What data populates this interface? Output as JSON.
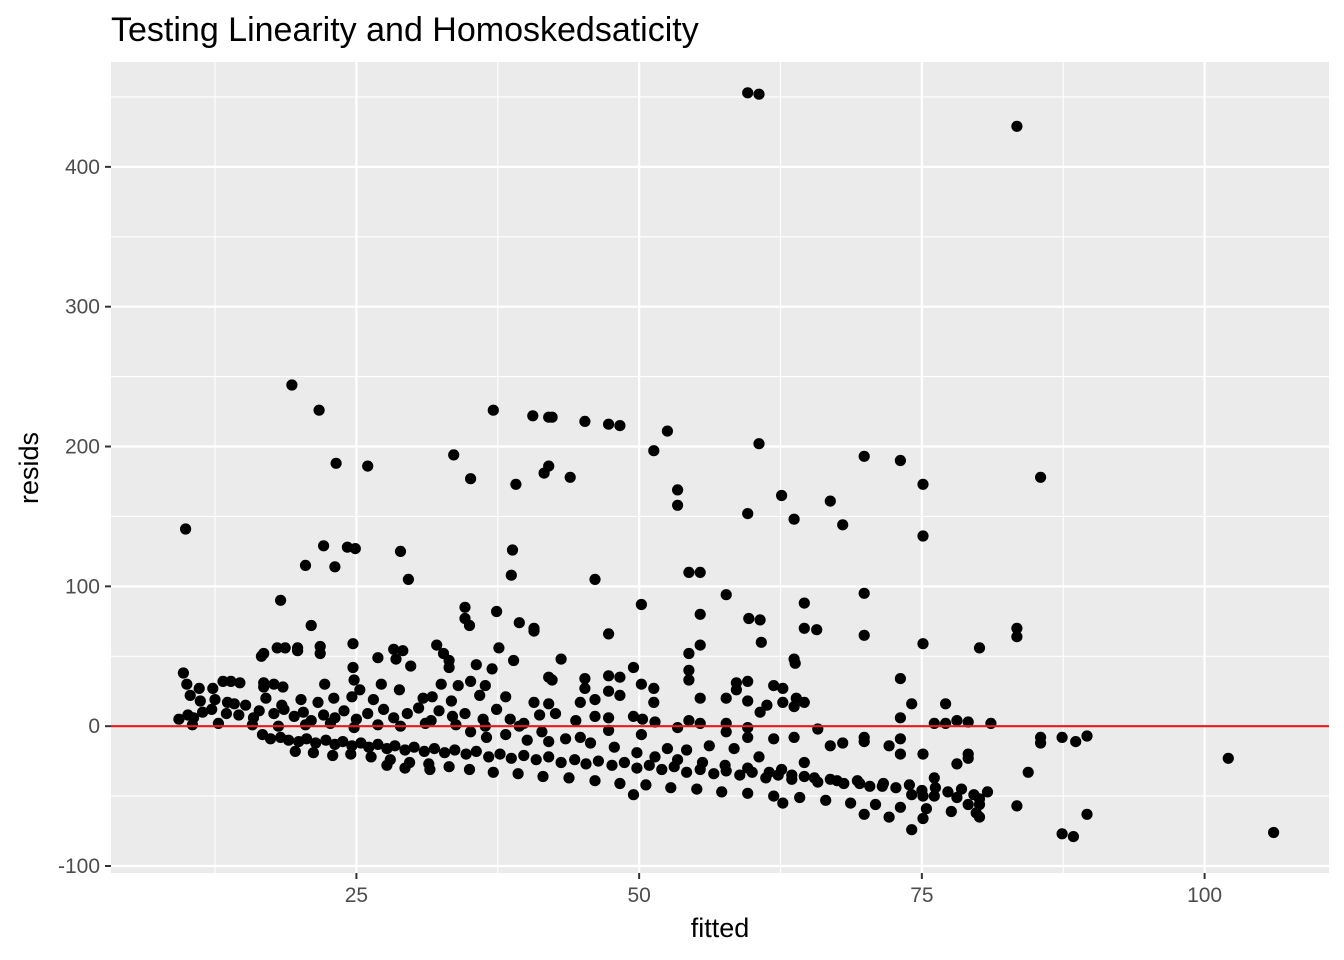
{
  "chart_data": {
    "type": "scatter",
    "title": "Testing Linearity and Homoskedsaticity",
    "xlabel": "fitted",
    "ylabel": "resids",
    "xlim": [
      3.3,
      111.0
    ],
    "ylim": [
      -105,
      475
    ],
    "x_ticks": [
      25,
      50,
      75,
      100
    ],
    "x_tick_labels": [
      "25",
      "50",
      "75",
      "100"
    ],
    "x_minor_ticks": [
      12.5,
      37.5,
      62.5,
      87.5
    ],
    "y_ticks": [
      -100,
      0,
      100,
      200,
      300,
      400
    ],
    "y_tick_labels": [
      "-100",
      "0",
      "100",
      "200",
      "300",
      "400"
    ],
    "y_minor_ticks": [
      -50,
      50,
      150,
      250,
      350,
      450
    ],
    "grid": true,
    "reference_line": {
      "y": 0,
      "color": "#e41a1c"
    },
    "point_color": "#000000",
    "panel_color": "#ebebeb",
    "grid_color": "#ffffff",
    "points": [
      [
        59.6,
        453
      ],
      [
        60.6,
        452
      ],
      [
        83.4,
        429
      ],
      [
        19.3,
        244
      ],
      [
        21.7,
        226
      ],
      [
        37.1,
        226
      ],
      [
        40.6,
        222
      ],
      [
        42.0,
        221
      ],
      [
        42.3,
        221
      ],
      [
        45.2,
        218
      ],
      [
        47.3,
        216
      ],
      [
        48.3,
        215
      ],
      [
        52.5,
        211
      ],
      [
        60.6,
        202
      ],
      [
        51.3,
        197
      ],
      [
        33.6,
        194
      ],
      [
        69.9,
        193
      ],
      [
        73.1,
        190
      ],
      [
        23.2,
        188
      ],
      [
        26.0,
        186
      ],
      [
        42.0,
        186
      ],
      [
        41.6,
        181
      ],
      [
        43.9,
        178
      ],
      [
        85.5,
        178
      ],
      [
        35.1,
        177
      ],
      [
        39.1,
        173
      ],
      [
        75.1,
        173
      ],
      [
        53.4,
        169
      ],
      [
        62.6,
        165
      ],
      [
        66.9,
        161
      ],
      [
        53.4,
        158
      ],
      [
        59.6,
        152
      ],
      [
        63.7,
        148
      ],
      [
        68.0,
        144
      ],
      [
        9.9,
        141
      ],
      [
        75.1,
        136
      ],
      [
        22.1,
        129
      ],
      [
        24.2,
        128
      ],
      [
        24.9,
        127
      ],
      [
        28.9,
        125
      ],
      [
        38.8,
        126
      ],
      [
        20.5,
        115
      ],
      [
        23.1,
        114
      ],
      [
        54.4,
        110
      ],
      [
        55.4,
        110
      ],
      [
        29.6,
        105
      ],
      [
        38.7,
        108
      ],
      [
        46.1,
        105
      ],
      [
        57.7,
        94
      ],
      [
        18.3,
        90
      ],
      [
        69.9,
        95
      ],
      [
        64.6,
        88
      ],
      [
        34.6,
        85
      ],
      [
        50.2,
        87
      ],
      [
        37.4,
        82
      ],
      [
        55.4,
        80
      ],
      [
        59.7,
        77
      ],
      [
        60.7,
        76
      ],
      [
        34.6,
        77
      ],
      [
        35.0,
        72
      ],
      [
        39.4,
        74
      ],
      [
        40.7,
        70
      ],
      [
        64.6,
        70
      ],
      [
        65.7,
        69
      ],
      [
        83.4,
        70
      ],
      [
        40.7,
        68
      ],
      [
        21.0,
        72
      ],
      [
        47.3,
        66
      ],
      [
        69.9,
        65
      ],
      [
        83.4,
        64
      ],
      [
        60.8,
        60
      ],
      [
        75.1,
        59
      ],
      [
        80.1,
        56
      ],
      [
        24.7,
        59
      ],
      [
        32.1,
        58
      ],
      [
        18.0,
        56
      ],
      [
        18.7,
        56
      ],
      [
        19.8,
        56
      ],
      [
        21.8,
        57
      ],
      [
        28.3,
        55
      ],
      [
        29.1,
        54
      ],
      [
        37.6,
        56
      ],
      [
        55.4,
        58
      ],
      [
        16.8,
        52
      ],
      [
        16.6,
        50
      ],
      [
        19.8,
        54
      ],
      [
        21.8,
        52
      ],
      [
        26.9,
        49
      ],
      [
        28.5,
        48
      ],
      [
        32.7,
        52
      ],
      [
        33.2,
        47
      ],
      [
        38.9,
        47
      ],
      [
        43.1,
        48
      ],
      [
        54.4,
        52
      ],
      [
        63.7,
        48
      ],
      [
        63.8,
        45
      ],
      [
        24.7,
        42
      ],
      [
        29.8,
        43
      ],
      [
        33.2,
        42
      ],
      [
        35.6,
        44
      ],
      [
        37.0,
        41
      ],
      [
        49.5,
        42
      ],
      [
        54.4,
        40
      ],
      [
        47.3,
        36
      ],
      [
        48.3,
        35
      ],
      [
        73.1,
        34
      ],
      [
        9.7,
        38
      ],
      [
        16.8,
        31
      ],
      [
        17.7,
        30
      ],
      [
        18.5,
        28
      ],
      [
        13.2,
        32
      ],
      [
        13.9,
        32
      ],
      [
        14.7,
        31
      ],
      [
        10.0,
        30
      ],
      [
        11.1,
        27
      ],
      [
        12.3,
        27
      ],
      [
        16.8,
        28
      ],
      [
        22.2,
        30
      ],
      [
        24.8,
        33
      ],
      [
        27.2,
        30
      ],
      [
        32.5,
        30
      ],
      [
        35.1,
        32
      ],
      [
        34.0,
        29
      ],
      [
        36.4,
        29
      ],
      [
        42.0,
        35
      ],
      [
        42.3,
        33
      ],
      [
        45.2,
        34
      ],
      [
        50.2,
        30
      ],
      [
        51.3,
        27
      ],
      [
        54.4,
        33
      ],
      [
        58.6,
        31
      ],
      [
        59.6,
        32
      ],
      [
        61.9,
        29
      ],
      [
        62.7,
        27
      ],
      [
        45.2,
        27
      ],
      [
        47.3,
        25
      ],
      [
        58.6,
        26
      ],
      [
        63.9,
        20
      ],
      [
        62.7,
        17
      ],
      [
        63.7,
        14
      ],
      [
        73.1,
        6
      ],
      [
        74.1,
        16
      ],
      [
        77.1,
        16
      ],
      [
        10.3,
        22
      ],
      [
        11.2,
        18
      ],
      [
        12.5,
        19
      ],
      [
        13.6,
        17
      ],
      [
        14.2,
        16
      ],
      [
        15.2,
        15
      ],
      [
        17.0,
        20
      ],
      [
        18.4,
        15
      ],
      [
        20.1,
        19
      ],
      [
        21.6,
        17
      ],
      [
        23.0,
        20
      ],
      [
        24.6,
        21
      ],
      [
        25.3,
        26
      ],
      [
        26.5,
        19
      ],
      [
        28.8,
        26
      ],
      [
        30.9,
        20
      ],
      [
        31.7,
        21
      ],
      [
        33.4,
        18
      ],
      [
        35.9,
        22
      ],
      [
        38.2,
        21
      ],
      [
        40.7,
        17
      ],
      [
        42.0,
        16
      ],
      [
        44.8,
        17
      ],
      [
        46.1,
        19
      ],
      [
        48.3,
        22
      ],
      [
        51.3,
        17
      ],
      [
        55.4,
        20
      ],
      [
        57.7,
        20
      ],
      [
        59.6,
        18
      ],
      [
        61.3,
        15
      ],
      [
        64.6,
        17
      ],
      [
        9.3,
        5
      ],
      [
        10.1,
        8
      ],
      [
        10.6,
        6
      ],
      [
        11.4,
        10
      ],
      [
        12.2,
        12
      ],
      [
        13.5,
        9
      ],
      [
        14.6,
        8
      ],
      [
        15.9,
        6
      ],
      [
        16.4,
        11
      ],
      [
        17.7,
        9
      ],
      [
        18.6,
        12
      ],
      [
        19.5,
        7
      ],
      [
        20.3,
        10
      ],
      [
        21.0,
        4
      ],
      [
        22.1,
        8
      ],
      [
        23.1,
        6
      ],
      [
        23.9,
        11
      ],
      [
        25.0,
        5
      ],
      [
        26.0,
        9
      ],
      [
        27.4,
        12
      ],
      [
        28.3,
        6
      ],
      [
        29.5,
        9
      ],
      [
        30.5,
        13
      ],
      [
        31.6,
        4
      ],
      [
        32.3,
        11
      ],
      [
        33.5,
        7
      ],
      [
        34.6,
        9
      ],
      [
        36.2,
        5
      ],
      [
        37.4,
        12
      ],
      [
        38.6,
        5
      ],
      [
        39.8,
        2
      ],
      [
        41.2,
        8
      ],
      [
        42.6,
        9
      ],
      [
        44.4,
        4
      ],
      [
        46.1,
        7
      ],
      [
        47.3,
        6
      ],
      [
        49.5,
        7
      ],
      [
        50.3,
        5
      ],
      [
        51.4,
        3
      ],
      [
        54.4,
        4
      ],
      [
        55.4,
        2
      ],
      [
        57.7,
        2
      ],
      [
        59.6,
        -1
      ],
      [
        60.7,
        10
      ],
      [
        76.1,
        2
      ],
      [
        77.1,
        2
      ],
      [
        78.1,
        4
      ],
      [
        79.1,
        3
      ],
      [
        81.1,
        2
      ],
      [
        10.5,
        1
      ],
      [
        12.8,
        2
      ],
      [
        15.8,
        1
      ],
      [
        18.1,
        0
      ],
      [
        20.5,
        1
      ],
      [
        22.7,
        2
      ],
      [
        24.8,
        -1
      ],
      [
        26.9,
        1
      ],
      [
        28.9,
        0
      ],
      [
        31.1,
        2
      ],
      [
        33.8,
        1
      ],
      [
        36.4,
        0
      ],
      [
        39.4,
        0
      ],
      [
        16.7,
        -6
      ],
      [
        17.4,
        -9
      ],
      [
        18.3,
        -8
      ],
      [
        19.0,
        -10
      ],
      [
        19.9,
        -11
      ],
      [
        20.6,
        -9
      ],
      [
        21.4,
        -12
      ],
      [
        22.3,
        -10
      ],
      [
        23.1,
        -13
      ],
      [
        23.8,
        -11
      ],
      [
        24.6,
        -14
      ],
      [
        25.4,
        -12
      ],
      [
        26.1,
        -15
      ],
      [
        26.9,
        -13
      ],
      [
        27.7,
        -16
      ],
      [
        28.4,
        -14
      ],
      [
        29.3,
        -17
      ],
      [
        30.1,
        -15
      ],
      [
        31.0,
        -18
      ],
      [
        31.9,
        -16
      ],
      [
        32.8,
        -19
      ],
      [
        33.7,
        -17
      ],
      [
        34.7,
        -20
      ],
      [
        35.6,
        -18
      ],
      [
        36.7,
        -22
      ],
      [
        37.7,
        -20
      ],
      [
        38.7,
        -23
      ],
      [
        39.8,
        -21
      ],
      [
        40.9,
        -24
      ],
      [
        42.0,
        -22
      ],
      [
        43.1,
        -26
      ],
      [
        44.3,
        -24
      ],
      [
        45.3,
        -27
      ],
      [
        46.4,
        -25
      ],
      [
        47.6,
        -28
      ],
      [
        48.7,
        -26
      ],
      [
        49.8,
        -30
      ],
      [
        50.9,
        -28
      ],
      [
        52.0,
        -31
      ],
      [
        53.1,
        -29
      ],
      [
        54.2,
        -33
      ],
      [
        55.4,
        -31
      ],
      [
        56.6,
        -34
      ],
      [
        57.7,
        -32
      ],
      [
        58.9,
        -35
      ],
      [
        60.0,
        -33
      ],
      [
        61.2,
        -37
      ],
      [
        62.3,
        -35
      ],
      [
        63.5,
        -38
      ],
      [
        64.6,
        -36
      ],
      [
        65.8,
        -40
      ],
      [
        66.9,
        -38
      ],
      [
        68.1,
        -41
      ],
      [
        69.3,
        -39
      ],
      [
        70.4,
        -43
      ],
      [
        71.6,
        -41
      ],
      [
        72.7,
        -44
      ],
      [
        73.9,
        -42
      ],
      [
        75.0,
        -46
      ],
      [
        76.2,
        -44
      ],
      [
        77.3,
        -47
      ],
      [
        78.5,
        -45
      ],
      [
        79.6,
        -49
      ],
      [
        80.8,
        -47
      ],
      [
        19.6,
        -18
      ],
      [
        21.2,
        -19
      ],
      [
        22.9,
        -21
      ],
      [
        24.5,
        -20
      ],
      [
        26.3,
        -22
      ],
      [
        28.0,
        -24
      ],
      [
        29.7,
        -26
      ],
      [
        31.4,
        -27
      ],
      [
        33.2,
        -29
      ],
      [
        35.0,
        -31
      ],
      [
        37.1,
        -33
      ],
      [
        39.3,
        -34
      ],
      [
        41.5,
        -36
      ],
      [
        43.8,
        -37
      ],
      [
        46.1,
        -39
      ],
      [
        48.3,
        -41
      ],
      [
        50.6,
        -42
      ],
      [
        52.8,
        -44
      ],
      [
        55.1,
        -45
      ],
      [
        57.3,
        -47
      ],
      [
        59.6,
        -48
      ],
      [
        61.9,
        -50
      ],
      [
        64.2,
        -51
      ],
      [
        66.5,
        -53
      ],
      [
        68.7,
        -55
      ],
      [
        70.9,
        -56
      ],
      [
        73.1,
        -58
      ],
      [
        75.4,
        -59
      ],
      [
        77.6,
        -61
      ],
      [
        79.8,
        -62
      ],
      [
        27.7,
        -28
      ],
      [
        29.3,
        -30
      ],
      [
        31.5,
        -31
      ],
      [
        49.5,
        -49
      ],
      [
        62.7,
        -55
      ],
      [
        69.9,
        -63
      ],
      [
        72.1,
        -65
      ],
      [
        74.1,
        -74
      ],
      [
        75.1,
        -66
      ],
      [
        80.1,
        -65
      ],
      [
        83.4,
        -57
      ],
      [
        84.4,
        -33
      ],
      [
        85.5,
        -8
      ],
      [
        85.5,
        -12
      ],
      [
        87.4,
        -8
      ],
      [
        87.4,
        -77
      ],
      [
        88.4,
        -79
      ],
      [
        88.6,
        -11
      ],
      [
        89.6,
        -7
      ],
      [
        89.6,
        -63
      ],
      [
        102.1,
        -23
      ],
      [
        106.1,
        -76
      ],
      [
        52.5,
        -16
      ],
      [
        54.2,
        -17
      ],
      [
        56.2,
        -14
      ],
      [
        58.4,
        -16
      ],
      [
        60.6,
        -22
      ],
      [
        62.6,
        -31
      ],
      [
        64.6,
        -26
      ],
      [
        66.9,
        -14
      ],
      [
        68.0,
        -12
      ],
      [
        69.9,
        -11
      ],
      [
        69.9,
        -8
      ],
      [
        72.1,
        -14
      ],
      [
        73.1,
        -9
      ],
      [
        73.1,
        -20
      ],
      [
        75.1,
        -20
      ],
      [
        76.1,
        -37
      ],
      [
        78.1,
        -27
      ],
      [
        79.1,
        -20
      ],
      [
        79.1,
        -23
      ],
      [
        80.1,
        -52
      ],
      [
        74.1,
        -49
      ],
      [
        75.1,
        -50
      ],
      [
        76.1,
        -50
      ],
      [
        78.1,
        -51
      ],
      [
        79.1,
        -56
      ],
      [
        80.1,
        -56
      ],
      [
        42.0,
        -11
      ],
      [
        44.8,
        -8
      ],
      [
        47.3,
        -3
      ],
      [
        50.2,
        -6
      ],
      [
        53.4,
        -1
      ],
      [
        57.7,
        -4
      ],
      [
        59.6,
        -8
      ],
      [
        61.9,
        -9
      ],
      [
        63.7,
        -8
      ],
      [
        65.8,
        -2
      ],
      [
        35.1,
        -4
      ],
      [
        36.5,
        -8
      ],
      [
        38.2,
        -6
      ],
      [
        40.1,
        -10
      ],
      [
        41.4,
        -4
      ],
      [
        43.5,
        -9
      ],
      [
        45.7,
        -12
      ],
      [
        47.8,
        -15
      ],
      [
        49.8,
        -19
      ],
      [
        51.4,
        -22
      ],
      [
        53.4,
        -24
      ],
      [
        55.6,
        -26
      ],
      [
        57.6,
        -28
      ],
      [
        59.6,
        -30
      ],
      [
        61.5,
        -33
      ],
      [
        63.5,
        -35
      ],
      [
        65.5,
        -37
      ],
      [
        67.5,
        -39
      ],
      [
        69.5,
        -41
      ],
      [
        71.5,
        -43
      ]
    ]
  }
}
